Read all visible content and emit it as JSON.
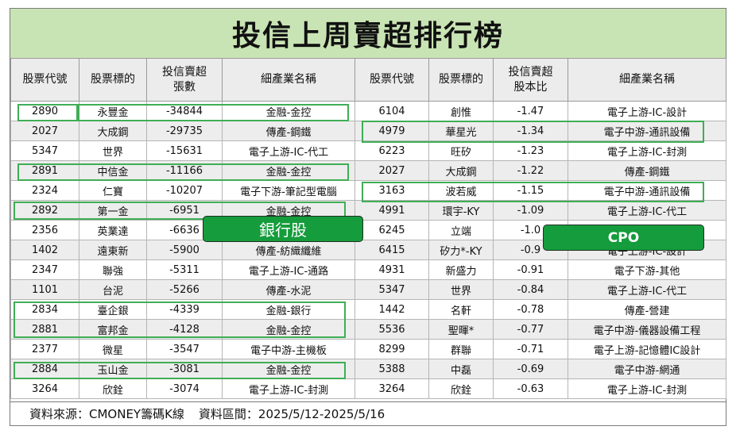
{
  "title": "投信上周賣超排行榜",
  "headers_left": [
    "股票代號",
    "股票標的",
    "投信賣超\n張數",
    "細產業名稱"
  ],
  "headers_right": [
    "股票代號",
    "股票標的",
    "投信賣超\n股本比",
    "細產業名稱"
  ],
  "left_rows": [
    {
      "code": "2890",
      "name": "永豐金",
      "value": "-34844",
      "industry": "金融-金控"
    },
    {
      "code": "2027",
      "name": "大成鋼",
      "value": "-29735",
      "industry": "傳產-鋼鐵"
    },
    {
      "code": "5347",
      "name": "世界",
      "value": "-15631",
      "industry": "電子上游-IC-代工"
    },
    {
      "code": "2891",
      "name": "中信金",
      "value": "-11166",
      "industry": "金融-金控"
    },
    {
      "code": "2324",
      "name": "仁寶",
      "value": "-10207",
      "industry": "電子下游-筆記型電腦"
    },
    {
      "code": "2892",
      "name": "第一金",
      "value": "-6951",
      "industry": "金融-金控"
    },
    {
      "code": "2356",
      "name": "英業達",
      "value": "-6636",
      "industry": ""
    },
    {
      "code": "1402",
      "name": "遠東新",
      "value": "-5900",
      "industry": "傳產-紡織纖維"
    },
    {
      "code": "2347",
      "name": "聯強",
      "value": "-5311",
      "industry": "電子上游-IC-通路"
    },
    {
      "code": "1101",
      "name": "台泥",
      "value": "-5266",
      "industry": "傳產-水泥"
    },
    {
      "code": "2834",
      "name": "臺企銀",
      "value": "-4339",
      "industry": "金融-銀行"
    },
    {
      "code": "2881",
      "name": "富邦金",
      "value": "-4128",
      "industry": "金融-金控"
    },
    {
      "code": "2377",
      "name": "微星",
      "value": "-3547",
      "industry": "電子中游-主機板"
    },
    {
      "code": "2884",
      "name": "玉山金",
      "value": "-3081",
      "industry": "金融-金控"
    },
    {
      "code": "3264",
      "name": "欣銓",
      "value": "-3074",
      "industry": "電子上游-IC-封測"
    }
  ],
  "right_rows": [
    {
      "code": "6104",
      "name": "創惟",
      "value": "-1.47",
      "industry": "電子上游-IC-設計"
    },
    {
      "code": "4979",
      "name": "華星光",
      "value": "-1.34",
      "industry": "電子中游-通訊設備"
    },
    {
      "code": "6223",
      "name": "旺矽",
      "value": "-1.23",
      "industry": "電子上游-IC-封測"
    },
    {
      "code": "2027",
      "name": "大成鋼",
      "value": "-1.22",
      "industry": "傳產-鋼鐵"
    },
    {
      "code": "3163",
      "name": "波若威",
      "value": "-1.15",
      "industry": "電子中游-通訊設備"
    },
    {
      "code": "4991",
      "name": "環宇-KY",
      "value": "-1.09",
      "industry": "電子上游-IC-代工"
    },
    {
      "code": "6245",
      "name": "立端",
      "value": "-1.0",
      "industry": ""
    },
    {
      "code": "6415",
      "name": "矽力*-KY",
      "value": "-0.9",
      "industry": "電子上游-IC-設計"
    },
    {
      "code": "4931",
      "name": "新盛力",
      "value": "-0.91",
      "industry": "電子下游-其他"
    },
    {
      "code": "5347",
      "name": "世界",
      "value": "-0.84",
      "industry": "電子上游-IC-代工"
    },
    {
      "code": "1442",
      "name": "名軒",
      "value": "-0.78",
      "industry": "傳產-營建"
    },
    {
      "code": "5536",
      "name": "聖暉*",
      "value": "-0.77",
      "industry": "電子中游-儀器設備工程"
    },
    {
      "code": "8299",
      "name": "群聯",
      "value": "-0.71",
      "industry": "電子上游-記憶體IC設計"
    },
    {
      "code": "5388",
      "name": "中磊",
      "value": "-0.69",
      "industry": "電子中游-網通"
    },
    {
      "code": "3264",
      "name": "欣銓",
      "value": "-0.63",
      "industry": "電子上游-IC-封測"
    }
  ],
  "callouts": {
    "bank": "銀行股",
    "cpo": "CPO"
  },
  "footer": {
    "source": "資料來源：CMONEY籌碼K線",
    "range": "資料區間：2025/5/12-2025/5/16"
  },
  "colors": {
    "title_bg": "#c9e4b4",
    "highlight": "#3fae56",
    "callout_bg": "#159c3c"
  }
}
